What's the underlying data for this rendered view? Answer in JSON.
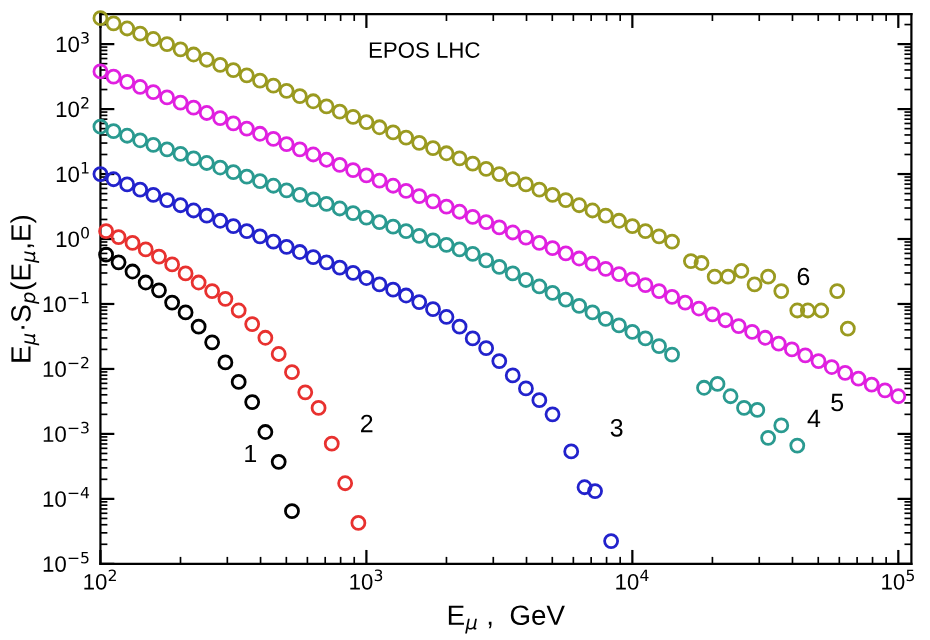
{
  "chart_data": {
    "type": "scatter",
    "title": "EPOS LHC",
    "xlabel": "E$_{μ}$ ,  GeV",
    "ylabel": "E$_{μ}$·S$_{p}$(E$_{μ}$,E)",
    "log": "xy",
    "marker": "circle",
    "grid": false,
    "legend": false,
    "xlim": [
      100,
      112000
    ],
    "ylim": [
      1e-05,
      2900
    ],
    "xticks": [
      {
        "value": 100,
        "label": "10$^{2}$"
      },
      {
        "value": 1000,
        "label": "10$^{3}$"
      },
      {
        "value": 10000,
        "label": "10$^{4}$"
      },
      {
        "value": 100000,
        "label": "10$^{5}$"
      }
    ],
    "yticks": [
      {
        "value": 1e-05,
        "label": "10$^{−5}$"
      },
      {
        "value": 0.0001,
        "label": "10$^{−4}$"
      },
      {
        "value": 0.001,
        "label": "10$^{−3}$"
      },
      {
        "value": 0.01,
        "label": "10$^{−2}$"
      },
      {
        "value": 0.1,
        "label": "10$^{−1}$"
      },
      {
        "value": 1,
        "label": "10$^{0}$"
      },
      {
        "value": 10,
        "label": "10$^{1}$"
      },
      {
        "value": 100,
        "label": "10$^{2}$"
      },
      {
        "value": 1000,
        "label": "10$^{3}$"
      }
    ],
    "series": [
      {
        "name": "1",
        "color": "#000000",
        "x": [
          105,
          117,
          132,
          148,
          166,
          186,
          209,
          234,
          263,
          295,
          331,
          372,
          417,
          468,
          525
        ],
        "values": [
          0.575,
          0.437,
          0.316,
          0.214,
          0.162,
          0.105,
          0.0741,
          0.0447,
          0.0257,
          0.0126,
          0.00631,
          0.00309,
          0.00107,
          0.000372,
          6.46e-05
        ]
      },
      {
        "name": "2",
        "color": "#e8312f",
        "x": [
          105,
          117,
          132,
          148,
          166,
          186,
          209,
          234,
          263,
          295,
          331,
          372,
          417,
          468,
          525,
          589,
          661,
          741,
          832,
          933
        ],
        "values": [
          1.32,
          1.07,
          0.871,
          0.692,
          0.537,
          0.407,
          0.295,
          0.214,
          0.158,
          0.12,
          0.0794,
          0.049,
          0.0302,
          0.017,
          0.00891,
          0.00437,
          0.00251,
          0.000708,
          0.000174,
          4.27e-05
        ]
      },
      {
        "name": "3",
        "color": "#2222cc",
        "x": [
          100,
          112,
          126,
          141,
          158,
          178,
          200,
          224,
          251,
          282,
          316,
          355,
          398,
          447,
          501,
          562,
          631,
          708,
          794,
          891,
          1000,
          1120,
          1260,
          1410,
          1580,
          1780,
          2000,
          2240,
          2510,
          2820,
          3160,
          3550,
          3980,
          4470,
          5010,
          5890,
          6610,
          7240,
          8320
        ],
        "values": [
          10.0,
          8.32,
          6.92,
          5.75,
          4.79,
          3.98,
          3.31,
          2.75,
          2.29,
          1.91,
          1.58,
          1.32,
          1.1,
          0.912,
          0.759,
          0.631,
          0.525,
          0.437,
          0.363,
          0.302,
          0.251,
          0.2,
          0.166,
          0.135,
          0.107,
          0.0832,
          0.0631,
          0.0447,
          0.0295,
          0.0209,
          0.0132,
          0.00794,
          0.00501,
          0.00331,
          0.002,
          0.000537,
          0.000151,
          0.000132,
          2.24e-05
        ]
      },
      {
        "name": "4",
        "color": "#2a9a90",
        "x": [
          100,
          112,
          126,
          141,
          158,
          178,
          200,
          224,
          251,
          282,
          316,
          355,
          398,
          447,
          501,
          562,
          631,
          708,
          794,
          891,
          1000,
          1120,
          1260,
          1410,
          1580,
          1780,
          2000,
          2240,
          2510,
          2820,
          3160,
          3550,
          3980,
          4470,
          5010,
          5620,
          6310,
          7080,
          7940,
          8910,
          10000,
          11200,
          12600,
          14100,
          18600,
          20900,
          23400,
          26300,
          29500,
          32400,
          36300,
          41700
        ],
        "values": [
          53.7,
          45.7,
          38.9,
          33.1,
          28.2,
          24.0,
          20.4,
          17.4,
          14.8,
          12.6,
          10.7,
          9.12,
          7.76,
          6.61,
          5.62,
          4.79,
          4.07,
          3.47,
          2.95,
          2.51,
          2.14,
          1.82,
          1.55,
          1.32,
          1.12,
          0.955,
          0.813,
          0.692,
          0.589,
          0.468,
          0.372,
          0.295,
          0.234,
          0.186,
          0.148,
          0.117,
          0.0933,
          0.0741,
          0.0589,
          0.0468,
          0.0372,
          0.0295,
          0.0224,
          0.0166,
          0.00513,
          0.00589,
          0.0038,
          0.00251,
          0.00234,
          0.000871,
          0.00135,
          0.000661
        ]
      },
      {
        "name": "5",
        "color": "#e020e0",
        "x": [
          100,
          112,
          126,
          141,
          158,
          178,
          200,
          224,
          251,
          282,
          316,
          355,
          398,
          447,
          501,
          562,
          631,
          708,
          794,
          891,
          1000,
          1120,
          1260,
          1410,
          1580,
          1780,
          2000,
          2240,
          2510,
          2820,
          3160,
          3550,
          3980,
          4470,
          5010,
          5620,
          6310,
          7080,
          7940,
          8910,
          10000,
          11200,
          12600,
          14100,
          15800,
          17800,
          20000,
          22400,
          25100,
          28200,
          31600,
          35500,
          39800,
          44700,
          50100,
          56200,
          63100,
          70800,
          79400,
          89100,
          100000
        ],
        "values": [
          380,
          316,
          263,
          219,
          182,
          151,
          126,
          105,
          87.1,
          72.4,
          60.3,
          50.1,
          41.7,
          34.7,
          28.8,
          24.0,
          20.0,
          16.6,
          13.8,
          11.5,
          9.55,
          7.94,
          6.61,
          5.5,
          4.57,
          3.8,
          3.16,
          2.63,
          2.19,
          1.82,
          1.51,
          1.26,
          1.05,
          0.871,
          0.724,
          0.603,
          0.501,
          0.417,
          0.347,
          0.288,
          0.24,
          0.195,
          0.158,
          0.129,
          0.105,
          0.0851,
          0.0692,
          0.0562,
          0.0457,
          0.0372,
          0.0302,
          0.0245,
          0.02,
          0.0162,
          0.0132,
          0.0107,
          0.00871,
          0.00708,
          0.00575,
          0.00468,
          0.0038
        ]
      },
      {
        "name": "6",
        "color": "#9a9a20",
        "x": [
          100,
          112,
          126,
          141,
          158,
          178,
          200,
          224,
          251,
          282,
          316,
          355,
          398,
          447,
          501,
          562,
          631,
          708,
          794,
          891,
          1000,
          1120,
          1260,
          1410,
          1580,
          1780,
          2000,
          2240,
          2510,
          2820,
          3160,
          3550,
          3980,
          4470,
          5010,
          5620,
          6310,
          7080,
          7940,
          8910,
          10000,
          11200,
          12600,
          14100,
          16600,
          18200,
          20400,
          22900,
          25700,
          28800,
          32400,
          36300,
          41700,
          45700,
          51300,
          58900,
          64600
        ],
        "values": [
          2510,
          2090,
          1740,
          1450,
          1200,
          1000,
          832,
          692,
          575,
          479,
          398,
          331,
          275,
          229,
          191,
          158,
          132,
          110,
          91.2,
          75.9,
          63.1,
          52.5,
          43.7,
          36.3,
          30.2,
          25.1,
          20.9,
          17.4,
          14.5,
          12.0,
          10.0,
          8.32,
          6.92,
          5.75,
          4.79,
          3.98,
          3.31,
          2.75,
          2.29,
          1.91,
          1.58,
          1.32,
          1.1,
          0.912,
          0.457,
          0.427,
          0.263,
          0.263,
          0.324,
          0.2,
          0.263,
          0.158,
          0.0794,
          0.0794,
          0.0794,
          0.158,
          0.0417
        ]
      }
    ]
  }
}
